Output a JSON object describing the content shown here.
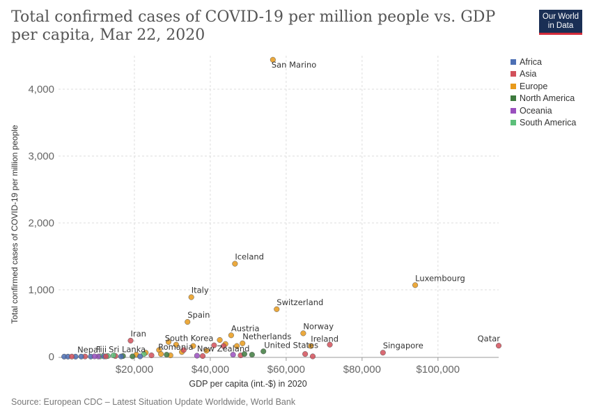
{
  "title": "Total confirmed cases of COVID-19 per million people vs. GDP per capita, Mar 22, 2020",
  "logo": {
    "line1": "Our World",
    "line2": "in Data"
  },
  "source": "Source: European CDC – Latest Situation Update Worldwide, World Bank",
  "colors": {
    "Africa": "#4c6fb4",
    "Asia": "#d2505a",
    "Europe": "#e89a1b",
    "North America": "#3e7a3e",
    "Oceania": "#9a4fbe",
    "South America": "#5cbf7a"
  },
  "chart_data": {
    "type": "scatter",
    "title": "Total confirmed cases of COVID-19 per million people vs. GDP per capita, Mar 22, 2020",
    "xlabel": "GDP per capita (int.-$) in 2020",
    "ylabel": "Total confirmed cases of COVID-19 per million people",
    "xlim": [
      0,
      116000
    ],
    "ylim": [
      0,
      4500
    ],
    "x_ticks": [
      20000,
      40000,
      60000,
      80000,
      100000
    ],
    "x_tick_labels": [
      "$20,000",
      "$40,000",
      "$60,000",
      "$80,000",
      "$100,000"
    ],
    "y_ticks": [
      0,
      1000,
      2000,
      3000,
      4000
    ],
    "y_tick_labels": [
      "0",
      "1,000",
      "2,000",
      "3,000",
      "4,000"
    ],
    "grid": true,
    "legend": "right",
    "legend_entries": [
      "Africa",
      "Asia",
      "Europe",
      "North America",
      "Oceania",
      "South America"
    ],
    "points": [
      {
        "label": "San Marino",
        "region": "Europe",
        "x": 56500,
        "y": 4440
      },
      {
        "label": "Iceland",
        "region": "Europe",
        "x": 46500,
        "y": 1390
      },
      {
        "label": "Luxembourg",
        "region": "Europe",
        "x": 94000,
        "y": 1070
      },
      {
        "label": "Italy",
        "region": "Europe",
        "x": 35000,
        "y": 890
      },
      {
        "label": "Switzerland",
        "region": "Europe",
        "x": 57500,
        "y": 710
      },
      {
        "label": "Spain",
        "region": "Europe",
        "x": 34000,
        "y": 520
      },
      {
        "label": "Norway",
        "region": "Europe",
        "x": 64500,
        "y": 350
      },
      {
        "label": "Austria",
        "region": "Europe",
        "x": 45500,
        "y": 320
      },
      {
        "label": "Netherlands",
        "region": "Europe",
        "x": 48500,
        "y": 200
      },
      {
        "label": "Iran",
        "region": "Asia",
        "x": 19000,
        "y": 240
      },
      {
        "label": "South Korea",
        "region": "Asia",
        "x": 41000,
        "y": 170
      },
      {
        "label": "Ireland",
        "region": "Europe",
        "x": 66500,
        "y": 160
      },
      {
        "label": "United States",
        "region": "North America",
        "x": 54000,
        "y": 80
      },
      {
        "label": "Singapore",
        "region": "Asia",
        "x": 85500,
        "y": 60
      },
      {
        "label": "Qatar",
        "region": "Asia",
        "x": 116000,
        "y": 165
      },
      {
        "label": "Romania",
        "region": "Europe",
        "x": 27000,
        "y": 40
      },
      {
        "label": "New Zealand",
        "region": "Oceania",
        "x": 36500,
        "y": 15
      },
      {
        "label": "Sri Lanka",
        "region": "Asia",
        "x": 12500,
        "y": 5
      },
      {
        "label": "Fiji",
        "region": "Oceania",
        "x": 9500,
        "y": 5
      },
      {
        "label": "Nepal",
        "region": "Asia",
        "x": 3500,
        "y": 2
      },
      {
        "label": "",
        "region": "Europe",
        "x": 29000,
        "y": 220
      },
      {
        "label": "",
        "region": "Europe",
        "x": 31000,
        "y": 180
      },
      {
        "label": "",
        "region": "Europe",
        "x": 47000,
        "y": 160
      },
      {
        "label": "",
        "region": "Europe",
        "x": 42500,
        "y": 250
      },
      {
        "label": "",
        "region": "Europe",
        "x": 35500,
        "y": 160
      },
      {
        "label": "",
        "region": "Europe",
        "x": 39000,
        "y": 90
      },
      {
        "label": "",
        "region": "Europe",
        "x": 26500,
        "y": 100
      },
      {
        "label": "",
        "region": "Europe",
        "x": 32500,
        "y": 70
      },
      {
        "label": "",
        "region": "Europe",
        "x": 23000,
        "y": 60
      },
      {
        "label": "",
        "region": "Europe",
        "x": 29500,
        "y": 20
      },
      {
        "label": "",
        "region": "Europe",
        "x": 20500,
        "y": 30
      },
      {
        "label": "",
        "region": "Europe",
        "x": 44000,
        "y": 190
      },
      {
        "label": "",
        "region": "Asia",
        "x": 43500,
        "y": 160
      },
      {
        "label": "",
        "region": "Asia",
        "x": 48000,
        "y": 20
      },
      {
        "label": "",
        "region": "Asia",
        "x": 65000,
        "y": 40
      },
      {
        "label": "",
        "region": "Asia",
        "x": 67000,
        "y": 5
      },
      {
        "label": "",
        "region": "Asia",
        "x": 71500,
        "y": 180
      },
      {
        "label": "",
        "region": "Asia",
        "x": 38000,
        "y": 10
      },
      {
        "label": "",
        "region": "Asia",
        "x": 33000,
        "y": 100
      },
      {
        "label": "",
        "region": "Asia",
        "x": 24500,
        "y": 20
      },
      {
        "label": "",
        "region": "Asia",
        "x": 15000,
        "y": 10
      },
      {
        "label": "",
        "region": "Asia",
        "x": 7000,
        "y": 3
      },
      {
        "label": "",
        "region": "North America",
        "x": 49000,
        "y": 40
      },
      {
        "label": "",
        "region": "North America",
        "x": 51000,
        "y": 30
      },
      {
        "label": "",
        "region": "North America",
        "x": 28500,
        "y": 30
      },
      {
        "label": "",
        "region": "North America",
        "x": 17000,
        "y": 10
      },
      {
        "label": "",
        "region": "North America",
        "x": 19500,
        "y": 5
      },
      {
        "label": "",
        "region": "South America",
        "x": 22500,
        "y": 40
      },
      {
        "label": "",
        "region": "South America",
        "x": 14500,
        "y": 20
      },
      {
        "label": "",
        "region": "South America",
        "x": 13000,
        "y": 10
      },
      {
        "label": "",
        "region": "South America",
        "x": 11000,
        "y": 5
      },
      {
        "label": "",
        "region": "Africa",
        "x": 1500,
        "y": 1
      },
      {
        "label": "",
        "region": "Africa",
        "x": 2500,
        "y": 1
      },
      {
        "label": "",
        "region": "Africa",
        "x": 4500,
        "y": 1
      },
      {
        "label": "",
        "region": "Africa",
        "x": 6000,
        "y": 2
      },
      {
        "label": "",
        "region": "Africa",
        "x": 8500,
        "y": 2
      },
      {
        "label": "",
        "region": "Africa",
        "x": 12000,
        "y": 5
      },
      {
        "label": "",
        "region": "Africa",
        "x": 16500,
        "y": 3
      },
      {
        "label": "",
        "region": "Africa",
        "x": 21500,
        "y": 4
      },
      {
        "label": "",
        "region": "Oceania",
        "x": 46000,
        "y": 30
      },
      {
        "label": "",
        "region": "Oceania",
        "x": 10500,
        "y": 3
      }
    ]
  }
}
